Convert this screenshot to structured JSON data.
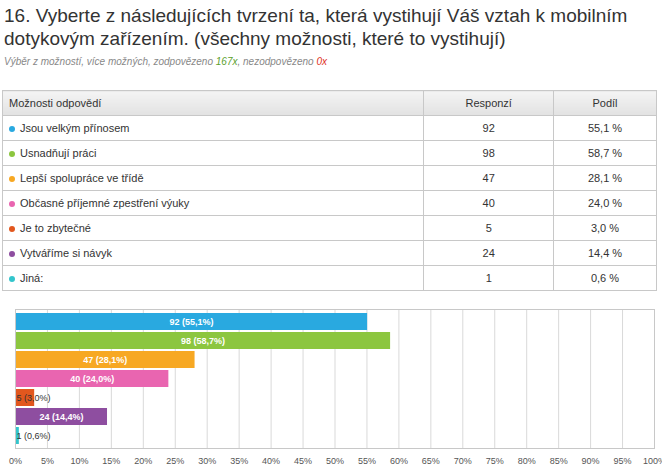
{
  "header": {
    "title": "16. Vyberte z následujících tvrzení ta, která vystihují Váš vztah k mobilním dotykovým zařízením. (všechny možnosti, které to vystihují)",
    "subtitle": [
      {
        "text": "Výběr z možností, více možných, zodpovězeno "
      },
      {
        "text": "167x",
        "color": "#5aa02c"
      },
      {
        "text": ", nezodpovězeno "
      },
      {
        "text": "0x",
        "color": "#e0301e"
      }
    ]
  },
  "table": {
    "columns": [
      "Možnosti odpovědí",
      "Responzí",
      "Podíl"
    ],
    "rows": [
      [
        "Jsou velkým přínosem",
        92,
        "55,1 %"
      ],
      [
        "Usnadňují práci",
        98,
        "58,7 %"
      ],
      [
        "Lepší spolupráce ve třídě",
        47,
        "28,1 %"
      ],
      [
        "Občasné příjemné zpestření výuky",
        40,
        "24,0 %"
      ],
      [
        "Je to zbytečné",
        5,
        "3,0 %"
      ],
      [
        "Vytváříme si návyk",
        24,
        "14,4 %"
      ],
      [
        "Jiná:",
        1,
        "0,6 %"
      ]
    ]
  },
  "chart_data": {
    "type": "bar",
    "orientation": "horizontal",
    "categories": [
      "Jsou velkým přínosem",
      "Usnadňují práci",
      "Lepší spolupráce ve třídě",
      "Občasné příjemné zpestření výuky",
      "Je to zbytečné",
      "Vytváříme si návyk",
      "Jiná:"
    ],
    "values": [
      55.1,
      58.7,
      28.1,
      24.0,
      3.0,
      14.4,
      0.6
    ],
    "value_labels": [
      "92 (55,1%)",
      "98 (58,7%)",
      "47 (28,1%)",
      "40 (24,0%)",
      "5 (3,0%)",
      "24 (14,4%)",
      "1 (0,6%)"
    ],
    "colors": [
      "#29a9e0",
      "#8cc63f",
      "#f7a823",
      "#e965b0",
      "#e2571e",
      "#8e4ea0",
      "#33c5cc"
    ],
    "xlim": [
      0,
      100
    ],
    "xticks": [
      {
        "value": 0,
        "label": "0%"
      },
      {
        "value": 5,
        "label": "5%"
      },
      {
        "value": 10,
        "label": "10%"
      },
      {
        "value": 15,
        "label": "15%"
      },
      {
        "value": 20,
        "label": "20%"
      },
      {
        "value": 25,
        "label": "25%"
      },
      {
        "value": 30,
        "label": "30%"
      },
      {
        "value": 35,
        "label": "35%"
      },
      {
        "value": 40,
        "label": "40%"
      },
      {
        "value": 45,
        "label": "45%"
      },
      {
        "value": 50,
        "label": "50%"
      },
      {
        "value": 55,
        "label": "55%"
      },
      {
        "value": 60,
        "label": "60%"
      },
      {
        "value": 65,
        "label": "65%"
      },
      {
        "value": 70,
        "label": "70%"
      },
      {
        "value": 75,
        "label": "75%"
      },
      {
        "value": 80,
        "label": "80%"
      },
      {
        "value": 85,
        "label": "85%"
      },
      {
        "value": 90,
        "label": "90%"
      },
      {
        "value": 95,
        "label": "95%"
      },
      {
        "value": 100,
        "label": "100%"
      }
    ],
    "grid": true,
    "data_labels": true,
    "tick_labels": "x"
  }
}
